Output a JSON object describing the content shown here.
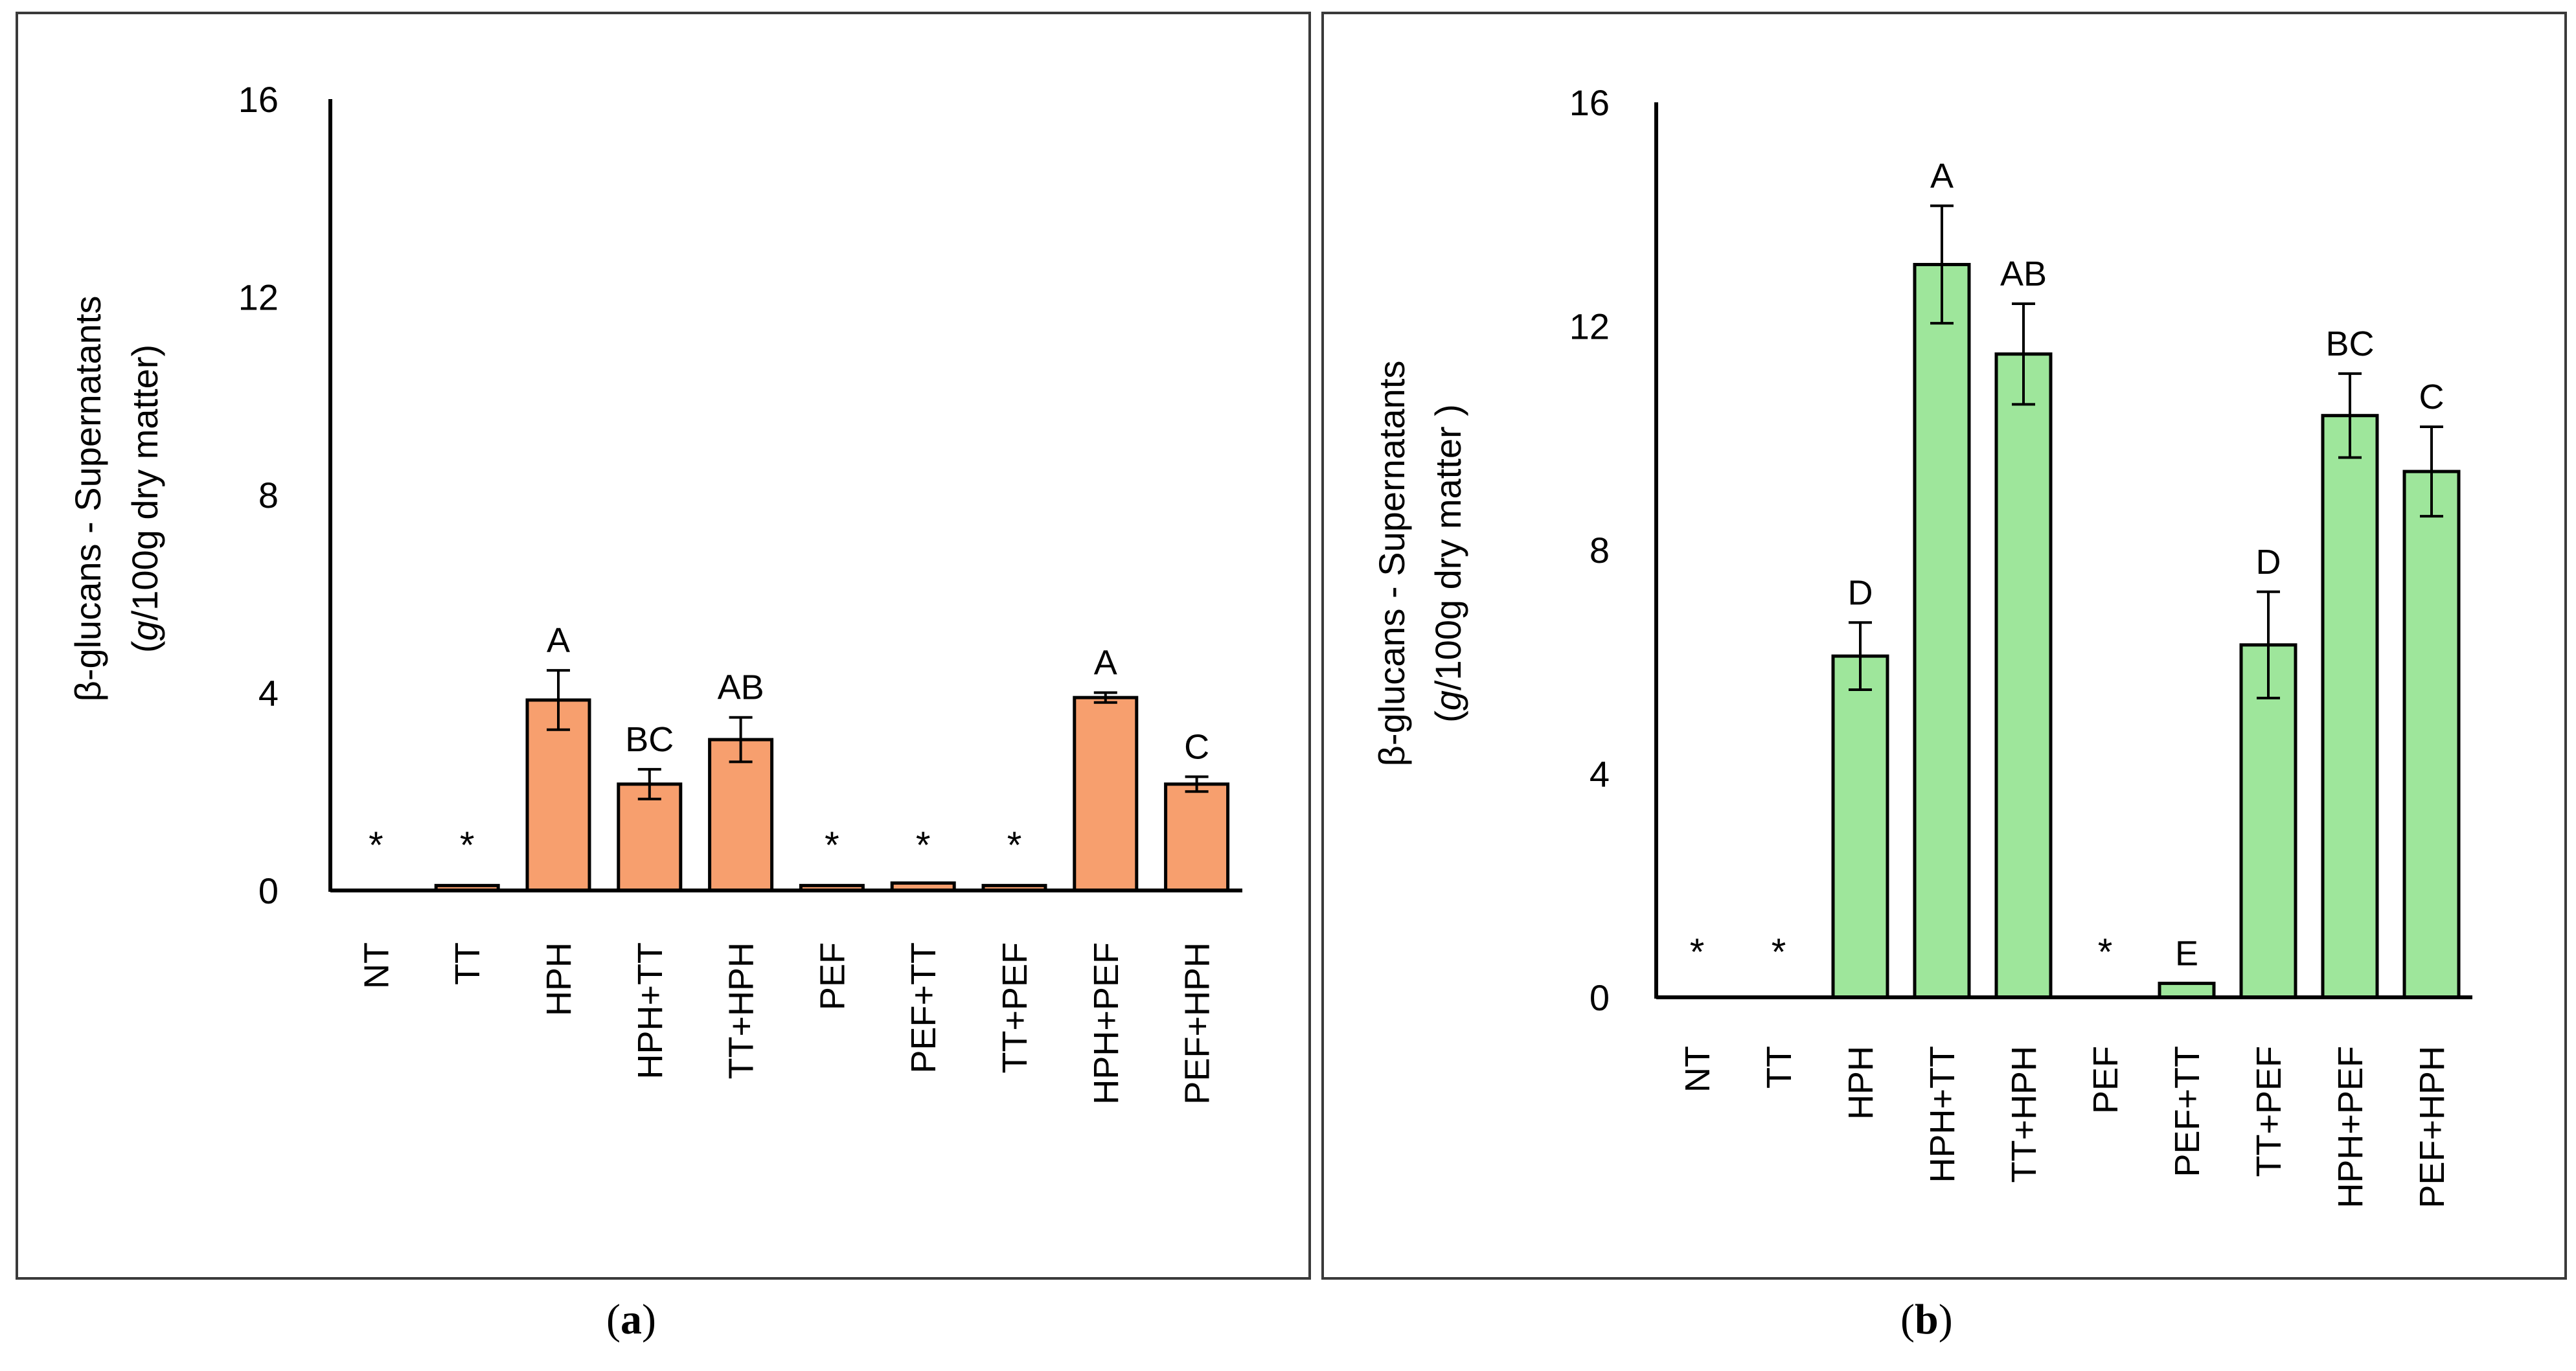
{
  "chart_data": [
    {
      "type": "bar",
      "panel": "a",
      "panel_label": "a",
      "ylabel_line1": "β-glucans - Supernatants",
      "ylabel_line2_pre": "(",
      "ylabel_line2_italic": "g",
      "ylabel_line2_post": "/100g dry matter)",
      "ylim": [
        0,
        16
      ],
      "yticks": [
        "0",
        "4",
        "8",
        "12",
        "16"
      ],
      "ytick_values": [
        0,
        4,
        8,
        12,
        16
      ],
      "bar_color": "#f79f6e",
      "categories": [
        "NT",
        "TT",
        "HPH",
        "HPH+TT",
        "TT+HPH",
        "PEF",
        "PEF+TT",
        "TT+PEF",
        "HPH+PEF",
        "PEF+HPH"
      ],
      "values": [
        0,
        0.1,
        3.85,
        2.15,
        3.05,
        0.1,
        0.15,
        0.1,
        3.9,
        2.15
      ],
      "errors": [
        0,
        0,
        0.6,
        0.3,
        0.45,
        0,
        0,
        0,
        0.1,
        0.15
      ],
      "letters": [
        "*",
        "*",
        "A",
        "BC",
        "AB",
        "*",
        "*",
        "*",
        "A",
        "C"
      ]
    },
    {
      "type": "bar",
      "panel": "b",
      "panel_label": "b",
      "ylabel_line1": "β-glucans - Supernatants",
      "ylabel_line2_pre": "(",
      "ylabel_line2_italic": "g",
      "ylabel_line2_post": "/100g dry matter )",
      "ylim": [
        0,
        16
      ],
      "yticks": [
        "0",
        "4",
        "8",
        "12",
        "16"
      ],
      "ytick_values": [
        0,
        4,
        8,
        12,
        16
      ],
      "bar_color": "#9ee69b",
      "categories": [
        "NT",
        "TT",
        "HPH",
        "HPH+TT",
        "TT+HPH",
        "PEF",
        "PEF+TT",
        "TT+PEF",
        "HPH+PEF",
        "PEF+HPH"
      ],
      "values": [
        0,
        0,
        6.1,
        13.1,
        11.5,
        0,
        0.25,
        6.3,
        10.4,
        9.4
      ],
      "errors": [
        0,
        0,
        0.6,
        1.05,
        0.9,
        0,
        0,
        0.95,
        0.75,
        0.8
      ],
      "letters": [
        "*",
        "*",
        "D",
        "A",
        "AB",
        "*",
        "E",
        "D",
        "BC",
        "C"
      ]
    }
  ]
}
